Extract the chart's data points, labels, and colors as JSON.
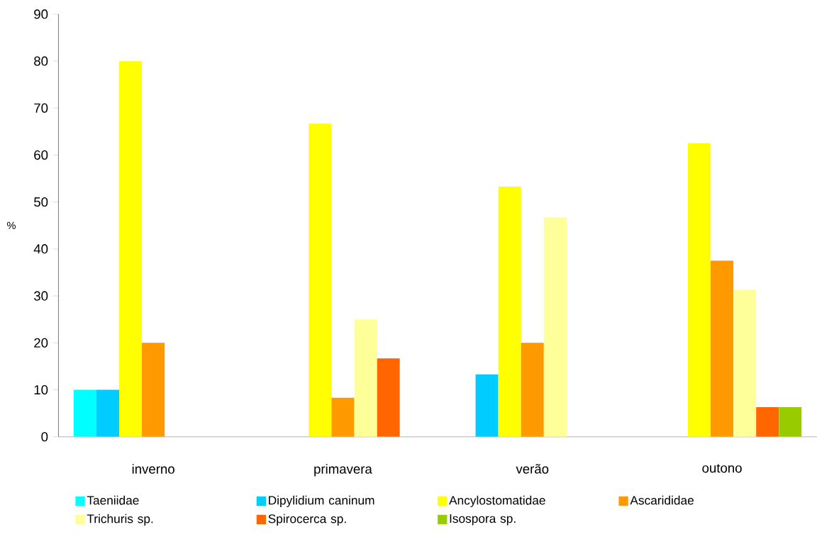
{
  "chart_data": {
    "type": "bar",
    "ylabel": "%",
    "categories": [
      "inverno",
      "primavera",
      "verão",
      "outono"
    ],
    "series": [
      {
        "name": "Taeniidae",
        "color": "#00ffff",
        "values": [
          10,
          null,
          null,
          null
        ]
      },
      {
        "name": "Dipylidium caninum",
        "color": "#00ccff",
        "values": [
          10,
          null,
          13.3,
          null
        ]
      },
      {
        "name": "Ancylostomatidae",
        "color": "#ffff00",
        "values": [
          80,
          66.7,
          53.3,
          62.5
        ]
      },
      {
        "name": "Ascarididae",
        "color": "#ff9900",
        "values": [
          20,
          8.3,
          20,
          37.5
        ]
      },
      {
        "name": "Trichuris sp.",
        "color": "#ffff99",
        "values": [
          null,
          25,
          46.7,
          31.3
        ]
      },
      {
        "name": "Spirocerca sp.",
        "color": "#ff6600",
        "values": [
          null,
          16.7,
          null,
          6.3
        ]
      },
      {
        "name": "Isospora sp.",
        "color": "#99cc00",
        "values": [
          null,
          null,
          null,
          6.3
        ]
      }
    ],
    "ylim": [
      0,
      90
    ],
    "yticks": [
      0,
      10,
      20,
      30,
      40,
      50,
      60,
      70,
      80,
      90
    ],
    "grid": false,
    "legend": "bottom"
  }
}
